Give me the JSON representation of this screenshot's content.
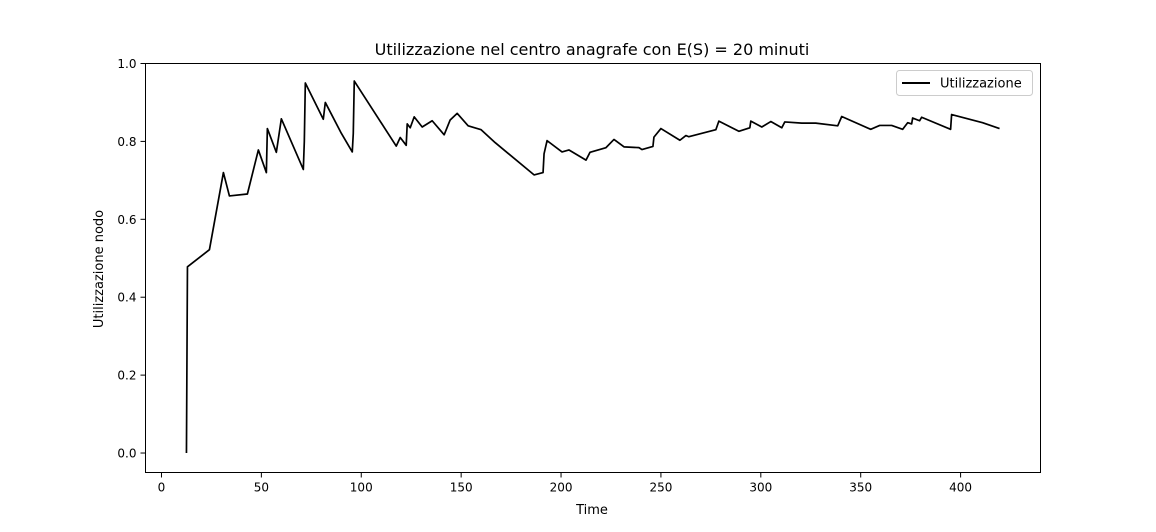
{
  "chart_data": {
    "type": "line",
    "title": "Utilizzazione nel centro anagrafe con E(S) = 20 minuti",
    "xlabel": "Time",
    "ylabel": "Utilizzazione nodo",
    "xlim": [
      -8,
      440
    ],
    "ylim": [
      -0.05,
      1.0
    ],
    "xticks": [
      0,
      50,
      100,
      150,
      200,
      250,
      300,
      350,
      400
    ],
    "yticks": [
      0.0,
      0.2,
      0.4,
      0.6,
      0.8,
      1.0
    ],
    "xtick_labels": [
      "0",
      "50",
      "100",
      "150",
      "200",
      "250",
      "300",
      "350",
      "400"
    ],
    "ytick_labels": [
      "0.0",
      "0.2",
      "0.4",
      "0.6",
      "0.8",
      "1.0"
    ],
    "grid": false,
    "legend_position": "upper right",
    "series": [
      {
        "name": "Utilizzazione",
        "color": "#000000",
        "x": [
          12.5,
          13.0,
          24.0,
          31.0,
          34.0,
          43.0,
          48.5,
          52.5,
          53.0,
          57.5,
          60.0,
          71.0,
          71.5,
          72.0,
          81.0,
          82.0,
          90.0,
          95.5,
          96.0,
          96.5,
          117.5,
          119.5,
          122.5,
          123.0,
          124.5,
          126.5,
          130.5,
          135.5,
          141.5,
          144.5,
          148.0,
          153.5,
          160.0,
          167.0,
          186.5,
          191.0,
          191.5,
          193.0,
          200.5,
          204.0,
          212.5,
          214.5,
          222.5,
          226.5,
          231.5,
          239.0,
          240.5,
          246.0,
          246.5,
          250.0,
          259.5,
          262.5,
          264.0,
          277.5,
          279.0,
          289.0,
          294.5,
          295.0,
          300.5,
          305.0,
          310.5,
          312.0,
          320.5,
          327.5,
          338.5,
          340.5,
          355.0,
          359.5,
          365.5,
          371.0,
          373.5,
          375.5,
          376.0,
          379.5,
          380.5,
          395.0,
          395.5,
          411.0,
          419.5
        ],
        "y": [
          0.0,
          0.478,
          0.522,
          0.72,
          0.66,
          0.665,
          0.778,
          0.72,
          0.833,
          0.772,
          0.858,
          0.728,
          0.8,
          0.95,
          0.857,
          0.9,
          0.821,
          0.773,
          0.82,
          0.955,
          0.788,
          0.81,
          0.79,
          0.845,
          0.835,
          0.863,
          0.837,
          0.853,
          0.817,
          0.855,
          0.872,
          0.84,
          0.83,
          0.797,
          0.714,
          0.72,
          0.768,
          0.802,
          0.773,
          0.778,
          0.752,
          0.772,
          0.784,
          0.805,
          0.786,
          0.784,
          0.779,
          0.787,
          0.811,
          0.833,
          0.803,
          0.815,
          0.812,
          0.83,
          0.852,
          0.826,
          0.835,
          0.852,
          0.837,
          0.851,
          0.835,
          0.85,
          0.847,
          0.847,
          0.84,
          0.864,
          0.831,
          0.841,
          0.841,
          0.831,
          0.848,
          0.845,
          0.86,
          0.853,
          0.862,
          0.831,
          0.869,
          0.848,
          0.833
        ]
      }
    ]
  }
}
